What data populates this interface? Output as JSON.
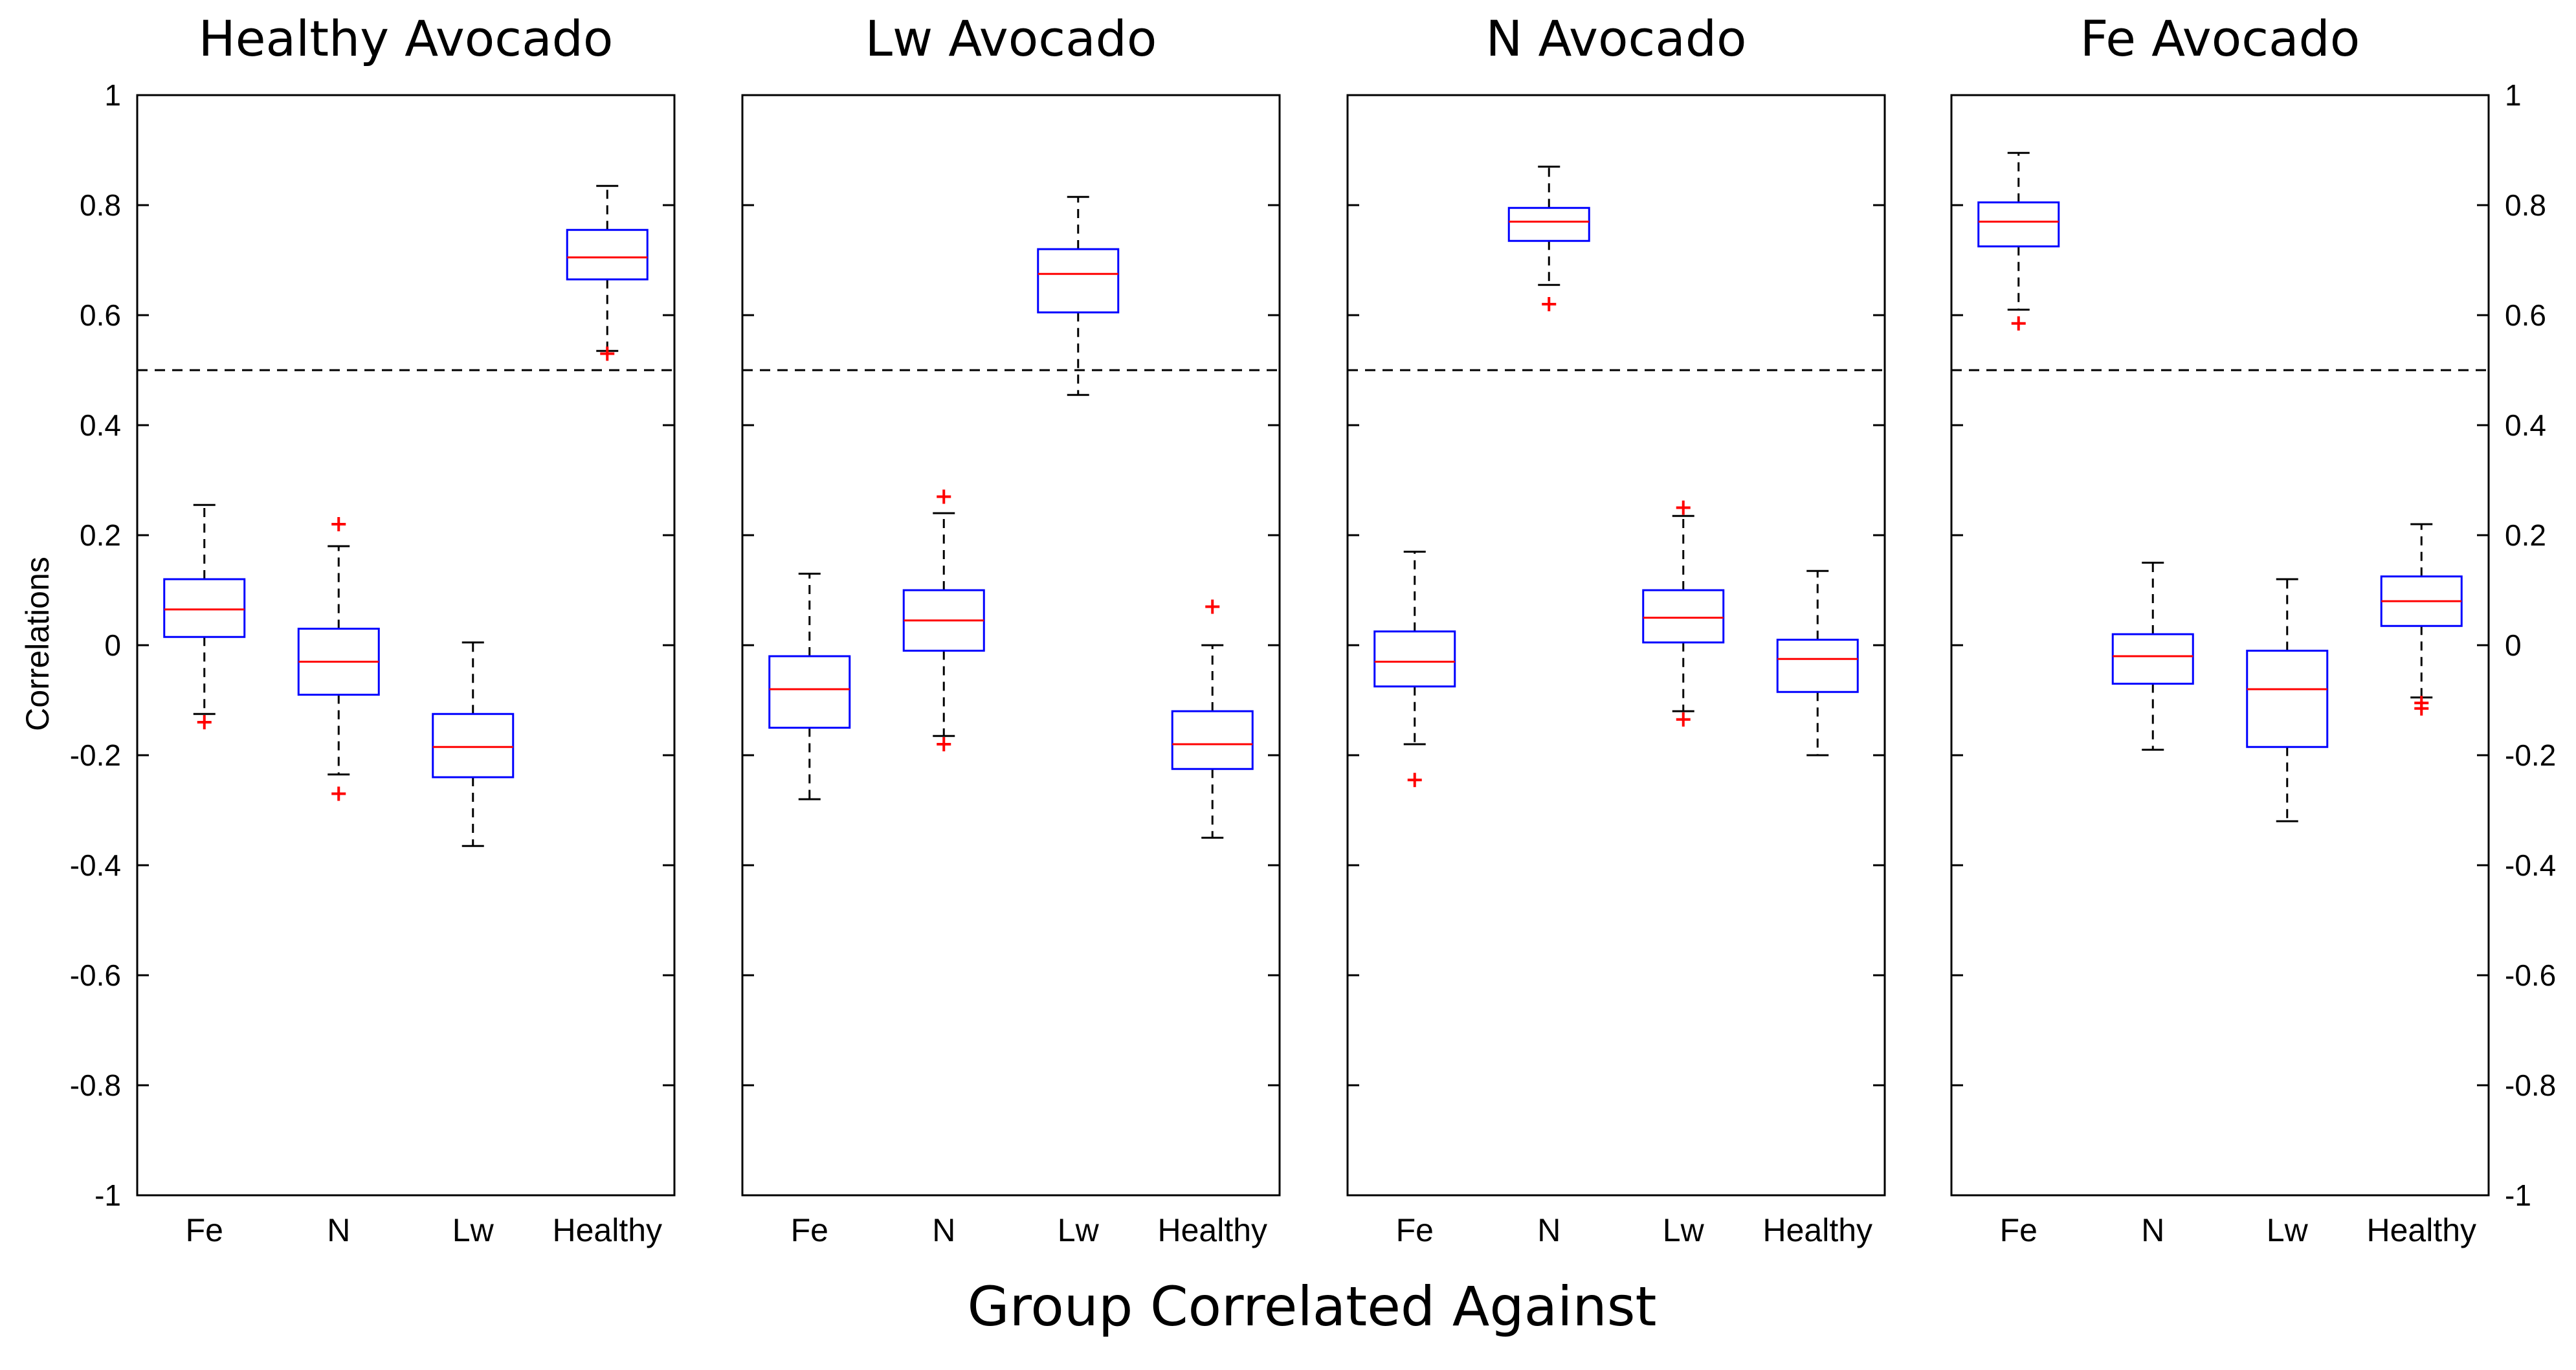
{
  "chart_data": {
    "type": "boxplot",
    "xlabel": "Group Correlated Against",
    "ylabel": "Correlations",
    "ylim": [
      -1,
      1
    ],
    "yticks": [
      1,
      0.8,
      0.6,
      0.4,
      0.2,
      0,
      -0.2,
      -0.4,
      -0.6,
      -0.8,
      -1
    ],
    "ytick_labels": [
      "1",
      "0.8",
      "0.6",
      "0.4",
      "0.2",
      "0",
      "-0.2",
      "-0.4",
      "-0.6",
      "-0.8",
      "-1"
    ],
    "threshold": 0.5,
    "categories": [
      "Fe",
      "N",
      "Lw",
      "Healthy"
    ],
    "colors": {
      "box": "#0000ff",
      "median": "#ff0000",
      "outlier": "#ff0000",
      "whisker": "#000000",
      "threshold": "#000000"
    },
    "panels": [
      {
        "title": "Healthy Avocado",
        "boxes": [
          {
            "category": "Fe",
            "whisker_low": -0.125,
            "q1": 0.015,
            "median": 0.065,
            "q3": 0.12,
            "whisker_high": 0.255,
            "outliers": [
              -0.14
            ]
          },
          {
            "category": "N",
            "whisker_low": -0.235,
            "q1": -0.09,
            "median": -0.03,
            "q3": 0.03,
            "whisker_high": 0.18,
            "outliers": [
              0.22,
              -0.27
            ]
          },
          {
            "category": "Lw",
            "whisker_low": -0.365,
            "q1": -0.24,
            "median": -0.185,
            "q3": -0.125,
            "whisker_high": 0.005,
            "outliers": []
          },
          {
            "category": "Healthy",
            "whisker_low": 0.535,
            "q1": 0.665,
            "median": 0.705,
            "q3": 0.755,
            "whisker_high": 0.835,
            "outliers": [
              0.53
            ]
          }
        ]
      },
      {
        "title": "Lw Avocado",
        "boxes": [
          {
            "category": "Fe",
            "whisker_low": -0.28,
            "q1": -0.15,
            "median": -0.08,
            "q3": -0.02,
            "whisker_high": 0.13,
            "outliers": []
          },
          {
            "category": "N",
            "whisker_low": -0.165,
            "q1": -0.01,
            "median": 0.045,
            "q3": 0.1,
            "whisker_high": 0.24,
            "outliers": [
              0.27,
              -0.18
            ]
          },
          {
            "category": "Lw",
            "whisker_low": 0.455,
            "q1": 0.605,
            "median": 0.675,
            "q3": 0.72,
            "whisker_high": 0.815,
            "outliers": []
          },
          {
            "category": "Healthy",
            "whisker_low": -0.35,
            "q1": -0.225,
            "median": -0.18,
            "q3": -0.12,
            "whisker_high": 0.0,
            "outliers": [
              0.07
            ]
          }
        ]
      },
      {
        "title": "N Avocado",
        "boxes": [
          {
            "category": "Fe",
            "whisker_low": -0.18,
            "q1": -0.075,
            "median": -0.03,
            "q3": 0.025,
            "whisker_high": 0.17,
            "outliers": [
              -0.245
            ]
          },
          {
            "category": "N",
            "whisker_low": 0.655,
            "q1": 0.735,
            "median": 0.77,
            "q3": 0.795,
            "whisker_high": 0.87,
            "outliers": [
              0.62
            ]
          },
          {
            "category": "Lw",
            "whisker_low": -0.12,
            "q1": 0.005,
            "median": 0.05,
            "q3": 0.1,
            "whisker_high": 0.235,
            "outliers": [
              0.25,
              -0.135
            ]
          },
          {
            "category": "Healthy",
            "whisker_low": -0.2,
            "q1": -0.085,
            "median": -0.025,
            "q3": 0.01,
            "whisker_high": 0.135,
            "outliers": []
          }
        ]
      },
      {
        "title": "Fe Avocado",
        "boxes": [
          {
            "category": "Fe",
            "whisker_low": 0.61,
            "q1": 0.725,
            "median": 0.77,
            "q3": 0.805,
            "whisker_high": 0.895,
            "outliers": [
              0.585
            ]
          },
          {
            "category": "N",
            "whisker_low": -0.19,
            "q1": -0.07,
            "median": -0.02,
            "q3": 0.02,
            "whisker_high": 0.15,
            "outliers": []
          },
          {
            "category": "Lw",
            "whisker_low": -0.32,
            "q1": -0.185,
            "median": -0.08,
            "q3": -0.01,
            "whisker_high": 0.12,
            "outliers": []
          },
          {
            "category": "Healthy",
            "whisker_low": -0.095,
            "q1": 0.035,
            "median": 0.08,
            "q3": 0.125,
            "whisker_high": 0.22,
            "outliers": [
              -0.105,
              -0.115
            ]
          }
        ]
      }
    ]
  }
}
